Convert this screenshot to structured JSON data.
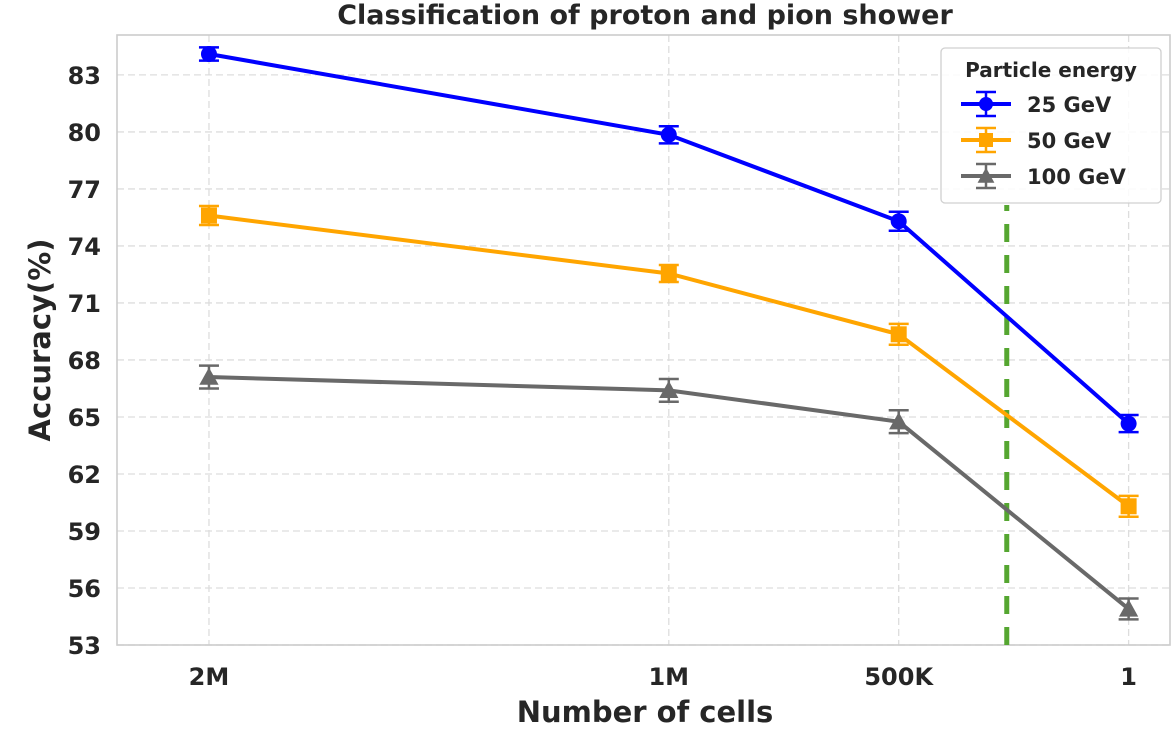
{
  "chart_data": {
    "type": "line",
    "title": "Classification of proton and pion shower",
    "xlabel": "Number of cells",
    "ylabel": "Accuracy(%)",
    "categories": [
      "2M",
      "1M",
      "500K",
      "1"
    ],
    "x": [
      0,
      2,
      3,
      4
    ],
    "xlim": [
      -0.4,
      4.18
    ],
    "ylim": [
      53,
      85.1
    ],
    "yticks": [
      53,
      56,
      59,
      62,
      65,
      68,
      71,
      74,
      77,
      80,
      83
    ],
    "grid": true,
    "legend": {
      "title": "Particle energy",
      "position": "top-right"
    },
    "series": [
      {
        "name": "25 GeV",
        "color": "#0000ff",
        "marker": "circle",
        "values": [
          84.1,
          79.85,
          75.3,
          64.65
        ],
        "errors": [
          0.35,
          0.45,
          0.5,
          0.45
        ]
      },
      {
        "name": "50 GeV",
        "color": "#ffa500",
        "marker": "square",
        "values": [
          75.6,
          72.55,
          69.35,
          60.3
        ],
        "errors": [
          0.5,
          0.45,
          0.55,
          0.55
        ]
      },
      {
        "name": "100 GeV",
        "color": "#696969",
        "marker": "triangle",
        "values": [
          67.1,
          66.4,
          64.75,
          54.9
        ],
        "errors": [
          0.6,
          0.6,
          0.6,
          0.55
        ]
      }
    ],
    "annotations": [
      {
        "type": "vline",
        "x": 3.47,
        "color": "#55a630",
        "style": "dashed"
      }
    ]
  }
}
